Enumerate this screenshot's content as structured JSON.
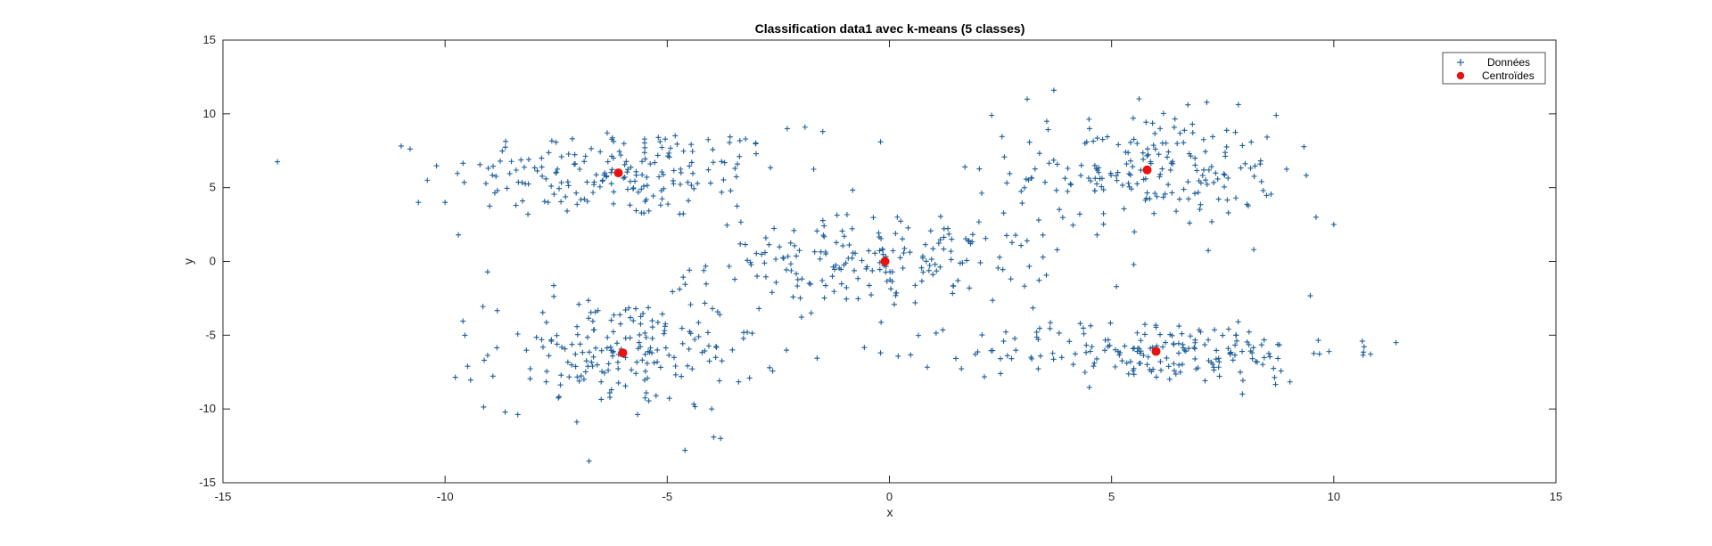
{
  "chart_data": {
    "type": "scatter",
    "title": "Classification data1 avec k-means (5 classes)",
    "xlabel": "x",
    "ylabel": "y",
    "xlim": [
      -15,
      15
    ],
    "ylim": [
      -15,
      15
    ],
    "xticks": [
      -15,
      -10,
      -5,
      0,
      5,
      10,
      15
    ],
    "yticks": [
      -15,
      -10,
      -5,
      0,
      5,
      10,
      15
    ],
    "xtick_labels": [
      "-15",
      "-10",
      "-5",
      "0",
      "5",
      "10",
      "15"
    ],
    "ytick_labels": [
      "-15",
      "-10",
      "-5",
      "0",
      "5",
      "10",
      "15"
    ],
    "grid": false,
    "legend_position": "top-right",
    "series": [
      {
        "name": "Données",
        "marker": "plus",
        "color": "#1f5f9a",
        "clusters": [
          {
            "center": [
              -6.1,
              6.0
            ],
            "sx": 1.9,
            "sy": 1.6,
            "n": 200
          },
          {
            "center": [
              5.8,
              6.2
            ],
            "sx": 1.5,
            "sy": 1.9,
            "n": 200
          },
          {
            "center": [
              -0.2,
              0.0
            ],
            "sx": 1.9,
            "sy": 1.5,
            "n": 200
          },
          {
            "center": [
              -6.0,
              -6.2
            ],
            "sx": 1.5,
            "sy": 1.9,
            "n": 200
          },
          {
            "center": [
              6.0,
              -6.1
            ],
            "sx": 2.1,
            "sy": 1.1,
            "n": 200
          }
        ],
        "outliers": [
          [
            -10.6,
            4.0
          ],
          [
            -10.4,
            5.5
          ],
          [
            -10.0,
            4.0
          ],
          [
            -9.7,
            1.8
          ],
          [
            -3.0,
            7.3
          ],
          [
            -2.3,
            9.0
          ],
          [
            -1.5,
            8.8
          ],
          [
            -4.6,
            -12.8
          ],
          [
            -3.8,
            -12.0
          ],
          [
            -4.0,
            -10.0
          ],
          [
            -0.2,
            8.1
          ],
          [
            -0.2,
            -6.2
          ],
          [
            2.3,
            9.9
          ],
          [
            3.1,
            11.0
          ],
          [
            3.7,
            11.6
          ],
          [
            9.6,
            3.0
          ],
          [
            10.0,
            2.5
          ],
          [
            11.4,
            -5.5
          ],
          [
            -3.2,
            -4.8
          ],
          [
            8.2,
            0.8
          ],
          [
            -2.8,
            0.6
          ],
          [
            2.5,
            -7.6
          ],
          [
            -1.9,
            9.1
          ],
          [
            1.7,
            6.4
          ]
        ]
      },
      {
        "name": "Centroïdes",
        "marker": "circle",
        "color": "#e8120e",
        "points": [
          [
            -6.1,
            6.0
          ],
          [
            5.8,
            6.2
          ],
          [
            -0.1,
            0.0
          ],
          [
            -6.0,
            -6.2
          ],
          [
            6.0,
            -6.1
          ]
        ]
      }
    ]
  }
}
